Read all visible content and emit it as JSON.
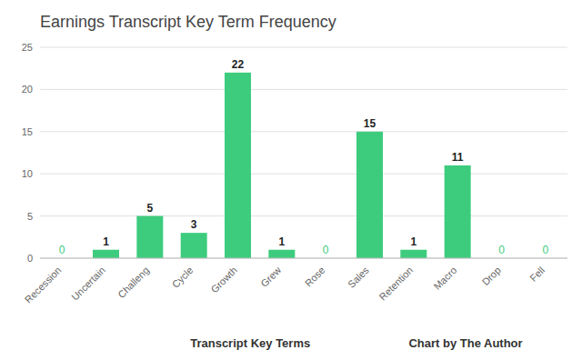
{
  "chart_data": {
    "type": "bar",
    "title": "Earnings Transcript Key Term Frequency",
    "categories": [
      "Recession",
      "Uncertain",
      "Challeng",
      "Cycle",
      "Growth",
      "Grew",
      "Rose",
      "Sales",
      "Retention",
      "Macro",
      "Drop",
      "Fell"
    ],
    "values": [
      0,
      1,
      5,
      3,
      22,
      1,
      0,
      15,
      1,
      11,
      0,
      0
    ],
    "color": "#3dcc7e",
    "xlabel": "Transcript Key Terms",
    "annotations": [
      "Chart by The Author"
    ],
    "ylim": [
      0,
      25
    ],
    "yticks": [
      0,
      5,
      10,
      15,
      20,
      25
    ],
    "grid": true,
    "data_labels": true
  }
}
